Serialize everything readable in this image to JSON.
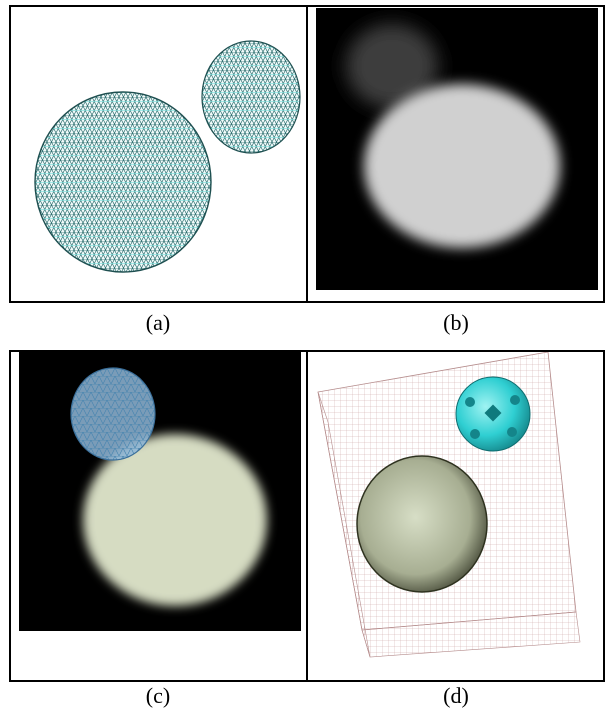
{
  "figure": {
    "captions": [
      "(a)",
      "(b)",
      "(c)",
      "(d)"
    ],
    "panels": [
      {
        "id": "a",
        "content": "wireframe-spheres"
      },
      {
        "id": "b",
        "content": "blurred-volume-render"
      },
      {
        "id": "c",
        "content": "combined-render"
      },
      {
        "id": "d",
        "content": "shaded-surfaces-with-grid"
      }
    ],
    "colors": {
      "wire": "#2a6f70",
      "wire_cyan": "#5fd6d4",
      "dark_bg": "#000000",
      "cyan_solid": "#2fd3d6",
      "olive_sphere": "#c9d2b8"
    }
  }
}
